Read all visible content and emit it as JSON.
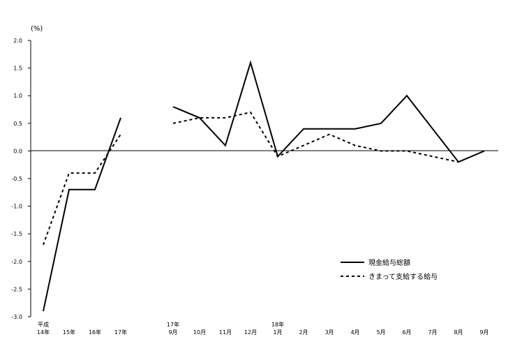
{
  "chart_data": {
    "type": "line",
    "unit_label": "(%)",
    "ylim": [
      -3.0,
      2.0
    ],
    "yticks": [
      "2.0",
      "1.5",
      "1.0",
      "0.5",
      "0.0",
      "-0.5",
      "-1.0",
      "-1.5",
      "-2.0",
      "-2.5",
      "-3.0"
    ],
    "grid": false,
    "legend_position": "lower-right",
    "categories": [
      {
        "top": "平成",
        "bottom": "14年"
      },
      {
        "top": "",
        "bottom": "15年"
      },
      {
        "top": "",
        "bottom": "16年"
      },
      {
        "top": "",
        "bottom": "17年"
      },
      {
        "top": "17年",
        "bottom": "9月"
      },
      {
        "top": "",
        "bottom": "10月"
      },
      {
        "top": "",
        "bottom": "11月"
      },
      {
        "top": "",
        "bottom": "12月"
      },
      {
        "top": "18年",
        "bottom": "1月"
      },
      {
        "top": "",
        "bottom": "2月"
      },
      {
        "top": "",
        "bottom": "3月"
      },
      {
        "top": "",
        "bottom": "4月"
      },
      {
        "top": "",
        "bottom": "5月"
      },
      {
        "top": "",
        "bottom": "6月"
      },
      {
        "top": "",
        "bottom": "7月"
      },
      {
        "top": "",
        "bottom": "8月"
      },
      {
        "top": "",
        "bottom": "9月"
      }
    ],
    "series": [
      {
        "name": "現金給与総額",
        "style": "solid",
        "segments": [
          [
            [
              0,
              -2.9
            ],
            [
              1,
              -0.7
            ],
            [
              2,
              -0.7
            ],
            [
              3,
              0.6
            ]
          ],
          [
            [
              4,
              0.8
            ],
            [
              5,
              0.6
            ],
            [
              6,
              0.1
            ],
            [
              7,
              1.6
            ],
            [
              8,
              -0.1
            ],
            [
              9,
              0.4
            ],
            [
              10,
              0.4
            ],
            [
              11,
              0.4
            ],
            [
              12,
              0.5
            ],
            [
              13,
              1.0
            ],
            [
              14,
              0.4
            ],
            [
              15,
              -0.2
            ],
            [
              16,
              0.0
            ]
          ]
        ]
      },
      {
        "name": "きまって支給する給与",
        "style": "dashed",
        "segments": [
          [
            [
              0,
              -1.7
            ],
            [
              1,
              -0.4
            ],
            [
              2,
              -0.4
            ],
            [
              3,
              0.3
            ]
          ],
          [
            [
              4,
              0.5
            ],
            [
              5,
              0.6
            ],
            [
              6,
              0.6
            ],
            [
              7,
              0.7
            ],
            [
              8,
              -0.1
            ],
            [
              9,
              0.1
            ],
            [
              10,
              0.3
            ],
            [
              11,
              0.1
            ],
            [
              12,
              0.0
            ],
            [
              13,
              0.0
            ],
            [
              14,
              -0.1
            ],
            [
              15,
              -0.2
            ]
          ]
        ]
      }
    ]
  }
}
